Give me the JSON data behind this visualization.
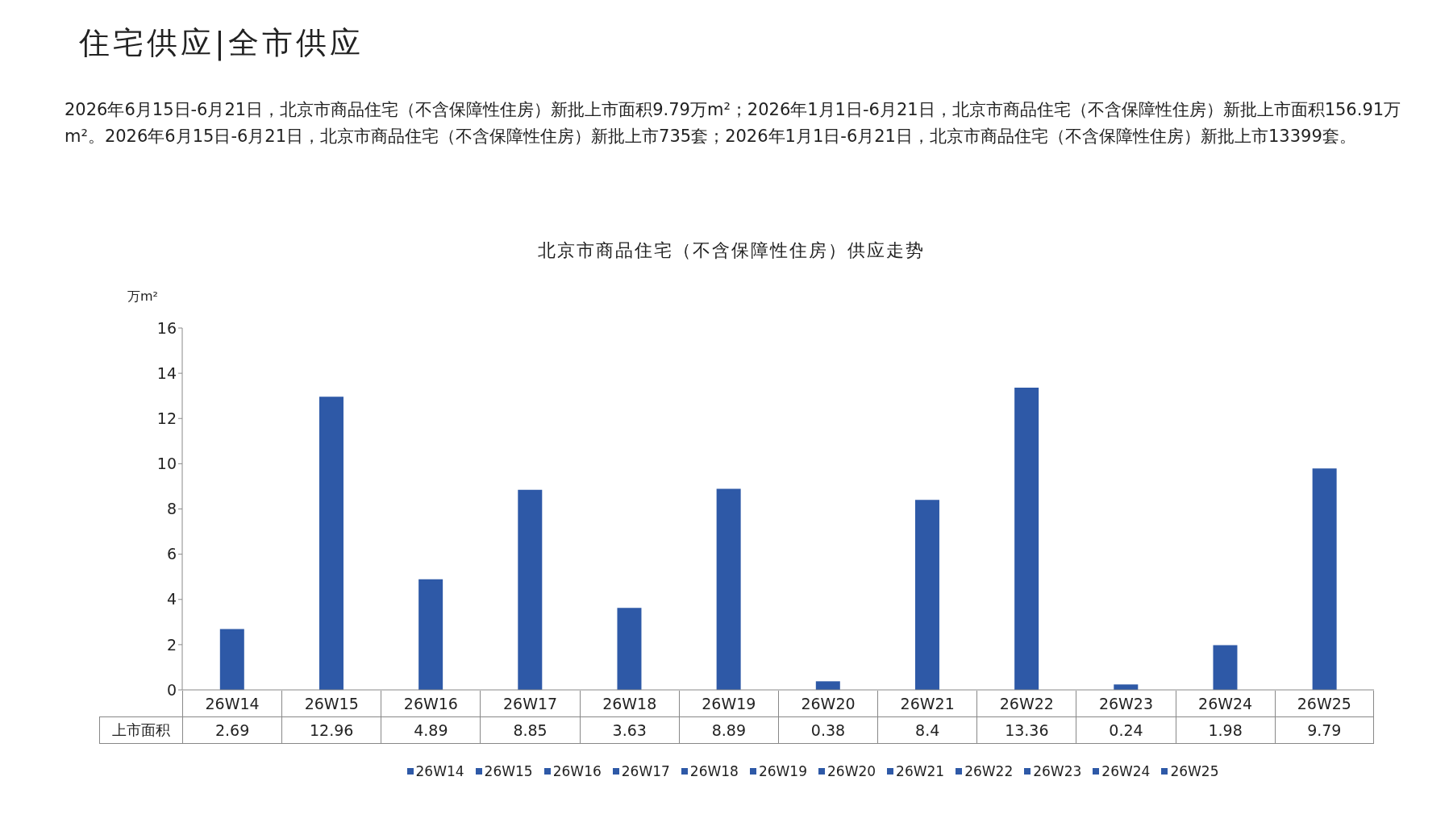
{
  "chart_data": {
    "type": "bar",
    "title": "住宅供应|全市供应",
    "subtitle": "2026年6月15日-6月21日，北京市商品住宅（不含保障性住房）新批上市面积9.79万m²；2026年1月1日-6月21日，北京市商品住宅（不含保障性住房）新批上市面积156.91万m²。2026年6月15日-6月21日，北京市商品住宅（不含保障性住房）新批上市735套；2026年1月1日-6月21日，北京市商品住宅（不含保障性住房）新批上市13399套。",
    "annotations": [
      "北京市商品住宅（不含保障性住房）供应走势"
    ],
    "ylabel": "万m²",
    "categories": [
      "26W14",
      "26W15",
      "26W16",
      "26W17",
      "26W18",
      "26W19",
      "26W20",
      "26W21",
      "26W22",
      "26W23",
      "26W24",
      "26W25"
    ],
    "series": [
      {
        "name": "上市面积",
        "color": "#2e59a7",
        "values": [
          2.69,
          12.96,
          4.89,
          8.85,
          3.63,
          8.89,
          0.38,
          8.4,
          13.36,
          0.24,
          1.98,
          9.79
        ]
      }
    ],
    "ylim": [
      0,
      16
    ],
    "yticks": [
      0,
      2,
      4,
      6,
      8,
      10,
      12,
      14,
      16
    ],
    "data_labels": true,
    "grid": false,
    "legend": "bottom"
  }
}
